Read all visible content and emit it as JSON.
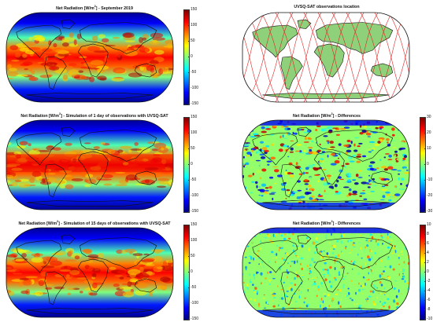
{
  "panels": [
    {
      "id": "p1",
      "title_pre": "Net Radiation [W/m",
      "title_sup": "2",
      "title_post": "] - September 2019",
      "kind": "net",
      "colorbar": {
        "ticks": [
          "150",
          "100",
          "50",
          "0",
          "-50",
          "-100",
          "-150"
        ],
        "range": [
          -150,
          150
        ]
      }
    },
    {
      "id": "p2",
      "title_pre": "UVSQ-SAT observations location",
      "title_sup": "",
      "title_post": "",
      "kind": "tracks",
      "colorbar": null
    },
    {
      "id": "p3",
      "title_pre": "Net Radiation [W/m",
      "title_sup": "2",
      "title_post": "] - Simulation of 1 day of observations with UVSQ-SAT",
      "kind": "net",
      "colorbar": {
        "ticks": [
          "150",
          "100",
          "50",
          "0",
          "-50",
          "-100",
          "-150"
        ],
        "range": [
          -150,
          150
        ]
      }
    },
    {
      "id": "p4",
      "title_pre": "Net Radiation [W/m",
      "title_sup": "2",
      "title_post": "] - Differences",
      "kind": "diff",
      "colorbar": {
        "ticks": [
          "30",
          "20",
          "10",
          "0",
          "-10",
          "-20",
          "-30"
        ],
        "range": [
          -30,
          30
        ]
      }
    },
    {
      "id": "p5",
      "title_pre": "Net Radiation [W/m",
      "title_sup": "2",
      "title_post": "] - Simulation of 15 days of observations with UVSQ-SAT",
      "kind": "net",
      "colorbar": {
        "ticks": [
          "150",
          "100",
          "50",
          "0",
          "-50",
          "-100",
          "-150"
        ],
        "range": [
          -150,
          150
        ]
      }
    },
    {
      "id": "p6",
      "title_pre": "Net Radiation [W/m",
      "title_sup": "2",
      "title_post": "] - Differences",
      "kind": "diff-small",
      "colorbar": {
        "ticks": [
          "10",
          "8",
          "6",
          "4",
          "2",
          "0",
          "-2",
          "-4",
          "-6",
          "-8",
          "-10"
        ],
        "range": [
          -10,
          10
        ]
      }
    }
  ],
  "colors": {
    "jet": [
      "#00007f",
      "#0000ff",
      "#007fff",
      "#00ffff",
      "#7fff7f",
      "#ffff00",
      "#ff7f00",
      "#ff0000",
      "#7f0000"
    ],
    "land_tracks": "#8fd17a",
    "ocean_tracks": "#ffffff",
    "track_line": "#e02020",
    "coast": "#111111"
  }
}
